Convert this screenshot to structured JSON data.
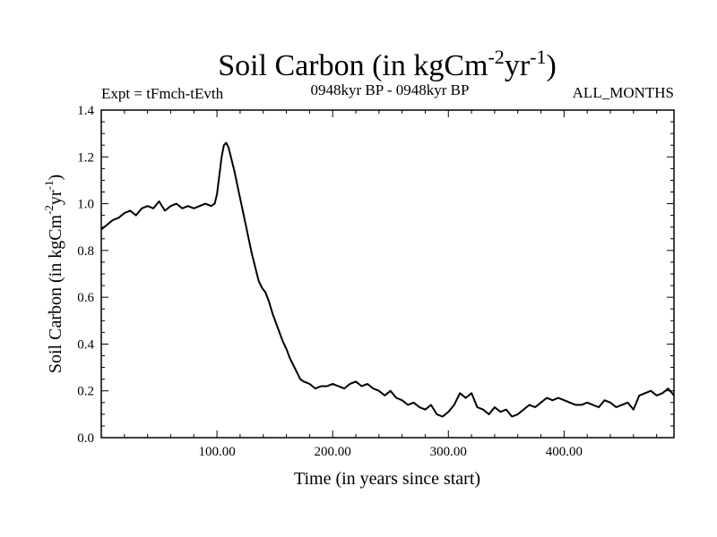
{
  "chart_data": {
    "type": "line",
    "title": "Soil Carbon (in kgCm",
    "title_sup1": "-2",
    "title_mid": "yr",
    "title_sup2": "-1",
    "title_end": ")",
    "subtitle_left": "Expt = tFmch-tEvth",
    "subtitle_center": "0948kyr BP - 0948kyr BP",
    "subtitle_right": "ALL_MONTHS",
    "xlabel": "Time (in years since start)",
    "ylabel": "Soil Carbon (in kgCm",
    "ylabel_sup1": "-2",
    "ylabel_mid": "yr",
    "ylabel_sup2": "-1",
    "ylabel_end": ")",
    "xlim": [
      0,
      495
    ],
    "ylim": [
      0.0,
      1.4
    ],
    "x_ticks": [
      100,
      200,
      300,
      400
    ],
    "x_tick_labels": [
      "100.00",
      "200.00",
      "300.00",
      "400.00"
    ],
    "y_ticks": [
      0.0,
      0.2,
      0.4,
      0.6,
      0.8,
      1.0,
      1.2,
      1.4
    ],
    "y_tick_labels": [
      "0.0",
      "0.2",
      "0.4",
      "0.6",
      "0.8",
      "1.0",
      "1.2",
      "1.4"
    ],
    "series": [
      {
        "name": "Soil Carbon",
        "color": "#000000",
        "x": [
          0,
          5,
          10,
          15,
          20,
          25,
          30,
          35,
          40,
          45,
          50,
          55,
          60,
          65,
          70,
          75,
          80,
          85,
          90,
          95,
          98,
          100,
          102,
          104,
          106,
          108,
          110,
          112,
          115,
          118,
          121,
          124,
          127,
          130,
          133,
          136,
          139,
          142,
          145,
          148,
          151,
          154,
          157,
          160,
          163,
          166,
          169,
          172,
          175,
          180,
          185,
          190,
          195,
          200,
          205,
          210,
          215,
          220,
          225,
          230,
          235,
          240,
          245,
          250,
          255,
          260,
          265,
          270,
          275,
          280,
          285,
          290,
          295,
          300,
          305,
          310,
          315,
          320,
          325,
          330,
          335,
          340,
          345,
          350,
          355,
          360,
          365,
          370,
          375,
          380,
          385,
          390,
          395,
          400,
          405,
          410,
          415,
          420,
          425,
          430,
          435,
          440,
          445,
          450,
          455,
          460,
          465,
          470,
          475,
          480,
          485,
          490,
          495
        ],
        "values": [
          0.89,
          0.91,
          0.93,
          0.94,
          0.96,
          0.97,
          0.95,
          0.98,
          0.99,
          0.98,
          1.01,
          0.97,
          0.99,
          1.0,
          0.98,
          0.99,
          0.98,
          0.99,
          1.0,
          0.99,
          1.0,
          1.04,
          1.12,
          1.2,
          1.25,
          1.26,
          1.24,
          1.2,
          1.14,
          1.07,
          1.0,
          0.93,
          0.86,
          0.79,
          0.73,
          0.67,
          0.64,
          0.62,
          0.58,
          0.53,
          0.49,
          0.45,
          0.41,
          0.38,
          0.34,
          0.31,
          0.28,
          0.25,
          0.24,
          0.23,
          0.21,
          0.22,
          0.22,
          0.23,
          0.22,
          0.21,
          0.23,
          0.24,
          0.22,
          0.23,
          0.21,
          0.2,
          0.18,
          0.2,
          0.17,
          0.16,
          0.14,
          0.15,
          0.13,
          0.12,
          0.14,
          0.1,
          0.09,
          0.11,
          0.14,
          0.19,
          0.17,
          0.19,
          0.13,
          0.12,
          0.1,
          0.13,
          0.11,
          0.12,
          0.09,
          0.1,
          0.12,
          0.14,
          0.13,
          0.15,
          0.17,
          0.16,
          0.17,
          0.16,
          0.15,
          0.14,
          0.14,
          0.15,
          0.14,
          0.13,
          0.16,
          0.15,
          0.13,
          0.14,
          0.15,
          0.12,
          0.18,
          0.19,
          0.2,
          0.18,
          0.19,
          0.21,
          0.18
        ]
      }
    ]
  }
}
